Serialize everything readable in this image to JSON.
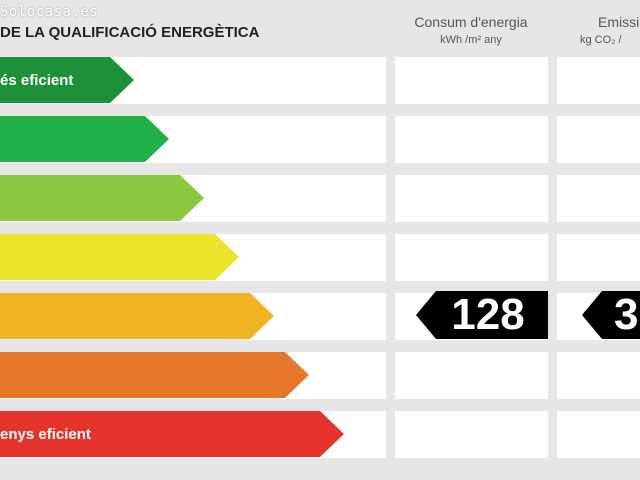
{
  "watermark": "Solocasa.es",
  "title": "DE LA QUALIFICACIÓ ENERGÈTICA",
  "columns": {
    "consumption": {
      "title": "Consum d'energia",
      "unit": "kWh /m² any"
    },
    "emissions": {
      "title": "Emissi",
      "unit": "kg CO₂ /"
    }
  },
  "ratings": [
    {
      "label": "és eficient",
      "color": "#1e8f3a"
    },
    {
      "label": "",
      "color": "#22b04b"
    },
    {
      "label": "",
      "color": "#8dc63f"
    },
    {
      "label": "",
      "color": "#e8e52a"
    },
    {
      "label": "",
      "color": "#f0b323"
    },
    {
      "label": "",
      "color": "#e5782d"
    },
    {
      "label": "enys eficient",
      "color": "#e4342b"
    }
  ],
  "indicators": {
    "consumption_value": "128",
    "emissions_value": "3",
    "rating_row": 5
  }
}
